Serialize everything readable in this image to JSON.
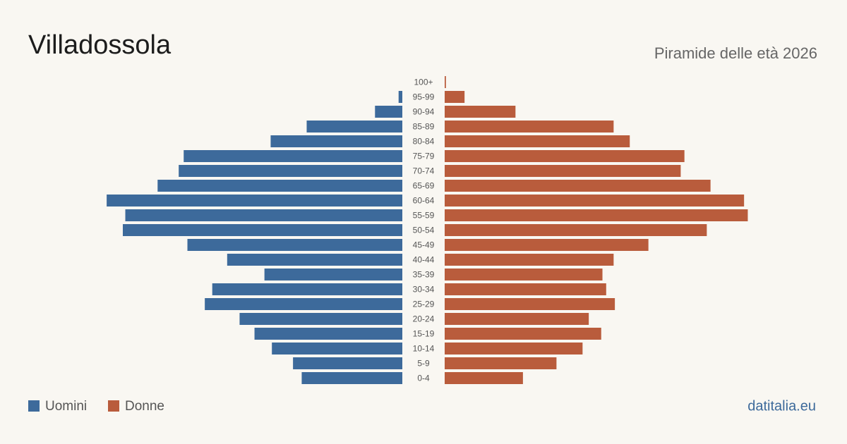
{
  "chart_data": {
    "type": "pyramid",
    "title": "Villadossola",
    "subtitle": "Piramide delle età 2026",
    "source": "datitalia.eu",
    "categories": [
      "100+",
      "95-99",
      "90-94",
      "85-89",
      "80-84",
      "75-79",
      "70-74",
      "65-69",
      "60-64",
      "55-59",
      "50-54",
      "45-49",
      "40-44",
      "35-39",
      "30-34",
      "25-29",
      "20-24",
      "15-19",
      "10-14",
      "5-9",
      "0-4"
    ],
    "series": [
      {
        "name": "Uomini",
        "color": "#3d6a9b",
        "values": [
          0,
          3,
          22,
          77,
          106,
          176,
          180,
          197,
          238,
          223,
          225,
          173,
          141,
          111,
          153,
          159,
          131,
          119,
          105,
          88,
          81
        ]
      },
      {
        "name": "Donne",
        "color": "#b95c3c",
        "values": [
          1,
          16,
          57,
          136,
          149,
          193,
          190,
          214,
          241,
          244,
          211,
          164,
          136,
          127,
          130,
          137,
          116,
          126,
          111,
          90,
          63
        ]
      }
    ],
    "xlim": [
      0,
      250
    ]
  }
}
